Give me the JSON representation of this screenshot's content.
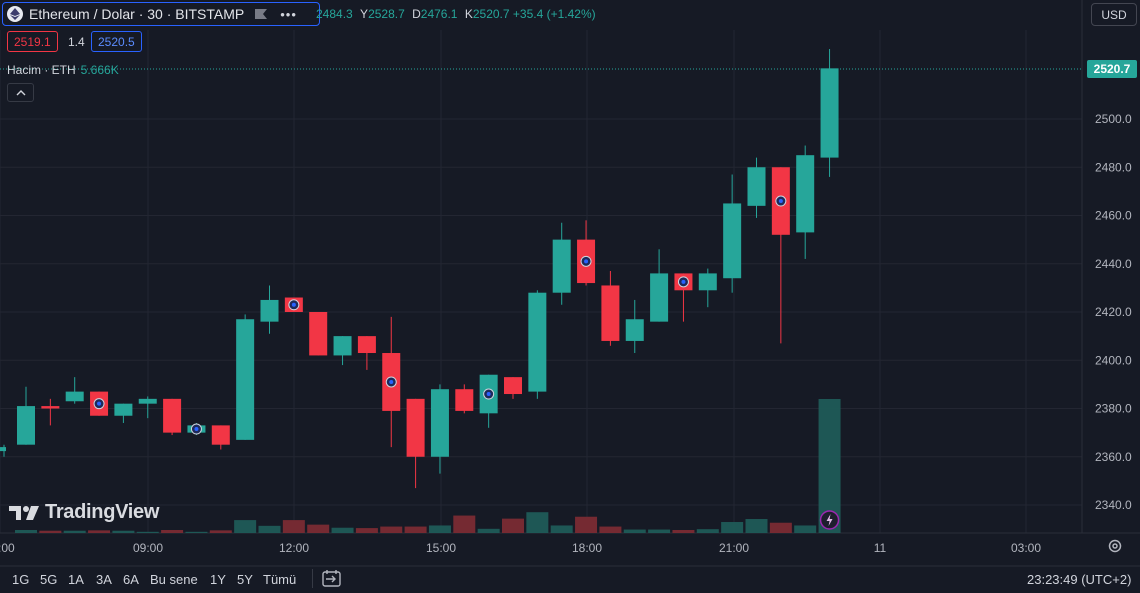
{
  "header": {
    "symbol": "Ethereum / Dolar · 30 · BITSTAMP",
    "ohlc": {
      "open_prefix": "2484.3",
      "high_key": "Y",
      "high": "2528.7",
      "low_key": "D",
      "low": "2476.1",
      "close_key": "K",
      "close": "2520.7",
      "change": "+35.4 (+1.42%)"
    },
    "sell_price": "2519.1",
    "spread": "1.4",
    "buy_price": "2520.5",
    "currency": "USD"
  },
  "volume_legend": {
    "label": "Hacim · ETH",
    "value": "5.666K"
  },
  "current_price_label": "2520.7",
  "logo_text": "TradingView",
  "time_ranges": [
    "1G",
    "5G",
    "1A",
    "3A",
    "6A",
    "Bu sene",
    "1Y",
    "5Y",
    "Tümü"
  ],
  "clock": "23:23:49 (UTC+2)",
  "colors": {
    "up": "#26a69a",
    "down": "#f23645",
    "bg": "#161a25",
    "grid": "#232632"
  },
  "icons": [
    "ethereum-icon",
    "flag-icon",
    "more-icon",
    "chevron-up-icon",
    "gear-icon",
    "calendar-icon",
    "dividend-marker-icon",
    "lightning-icon"
  ],
  "chart_data": {
    "type": "candlestick",
    "interval": "30",
    "y_ticks": [
      2340.0,
      2360.0,
      2380.0,
      2400.0,
      2420.0,
      2440.0,
      2460.0,
      2480.0,
      2500.0
    ],
    "y_tick_labels": [
      "2340.0",
      "2360.0",
      "2380.0",
      "2400.0",
      "2420.0",
      "2440.0",
      "2460.0",
      "2480.0",
      "2500.0"
    ],
    "x_tick_labels": [
      ":00",
      "09:00",
      "12:00",
      "15:00",
      "18:00",
      "21:00",
      "11",
      "03:00"
    ],
    "candles": [
      {
        "o": 2365,
        "h": 2389,
        "l": 2365,
        "c": 2381
      },
      {
        "o": 2381,
        "h": 2384,
        "l": 2373,
        "c": 2380
      },
      {
        "o": 2383,
        "h": 2393,
        "l": 2382,
        "c": 2387
      },
      {
        "o": 2387,
        "h": 2387,
        "l": 2377,
        "c": 2377,
        "marker": true
      },
      {
        "o": 2377,
        "h": 2382,
        "l": 2374,
        "c": 2382
      },
      {
        "o": 2382,
        "h": 2385,
        "l": 2376,
        "c": 2384
      },
      {
        "o": 2384,
        "h": 2384,
        "l": 2369,
        "c": 2370
      },
      {
        "o": 2370,
        "h": 2374,
        "l": 2369,
        "c": 2373,
        "marker": true
      },
      {
        "o": 2373,
        "h": 2373,
        "l": 2363,
        "c": 2365
      },
      {
        "o": 2367,
        "h": 2419,
        "l": 2367,
        "c": 2417
      },
      {
        "o": 2416,
        "h": 2431,
        "l": 2411,
        "c": 2425
      },
      {
        "o": 2426,
        "h": 2426,
        "l": 2420,
        "c": 2420,
        "marker": true
      },
      {
        "o": 2420,
        "h": 2420,
        "l": 2402,
        "c": 2402
      },
      {
        "o": 2402,
        "h": 2410,
        "l": 2398,
        "c": 2410
      },
      {
        "o": 2410,
        "h": 2410,
        "l": 2396,
        "c": 2403
      },
      {
        "o": 2403,
        "h": 2418,
        "l": 2364,
        "c": 2379,
        "marker": true
      },
      {
        "o": 2384,
        "h": 2384,
        "l": 2347,
        "c": 2360
      },
      {
        "o": 2360,
        "h": 2390,
        "l": 2353,
        "c": 2388
      },
      {
        "o": 2388,
        "h": 2390,
        "l": 2378,
        "c": 2379
      },
      {
        "o": 2378,
        "h": 2394,
        "l": 2372,
        "c": 2394,
        "marker": true
      },
      {
        "o": 2393,
        "h": 2393,
        "l": 2384,
        "c": 2386
      },
      {
        "o": 2387,
        "h": 2429,
        "l": 2384,
        "c": 2428
      },
      {
        "o": 2428,
        "h": 2457,
        "l": 2423,
        "c": 2450
      },
      {
        "o": 2450,
        "h": 2458,
        "l": 2431,
        "c": 2432,
        "marker": true
      },
      {
        "o": 2431,
        "h": 2437,
        "l": 2406,
        "c": 2408
      },
      {
        "o": 2408,
        "h": 2425,
        "l": 2403,
        "c": 2417
      },
      {
        "o": 2416,
        "h": 2446,
        "l": 2416,
        "c": 2436
      },
      {
        "o": 2436,
        "h": 2436,
        "l": 2416,
        "c": 2429,
        "marker": true
      },
      {
        "o": 2429,
        "h": 2438,
        "l": 2422,
        "c": 2436
      },
      {
        "o": 2434,
        "h": 2477,
        "l": 2428,
        "c": 2465
      },
      {
        "o": 2464,
        "h": 2484,
        "l": 2459,
        "c": 2480
      },
      {
        "o": 2480,
        "h": 2480,
        "l": 2407,
        "c": 2452,
        "marker": true
      },
      {
        "o": 2453,
        "h": 2489,
        "l": 2442,
        "c": 2485
      },
      {
        "o": 2484,
        "h": 2529,
        "l": 2476,
        "c": 2521
      }
    ],
    "volumes": [
      0.33,
      0.25,
      0.25,
      0.29,
      0.25,
      0.13,
      0.33,
      0.13,
      0.29,
      1.42,
      0.79,
      1.42,
      0.92,
      0.58,
      0.54,
      0.71,
      0.71,
      0.83,
      1.92,
      0.46,
      1.58,
      2.29,
      0.83,
      1.79,
      0.71,
      0.38,
      0.38,
      0.33,
      0.42,
      1.21,
      1.54,
      1.13,
      0.83,
      14.75
    ],
    "last_price": 2520.7
  }
}
